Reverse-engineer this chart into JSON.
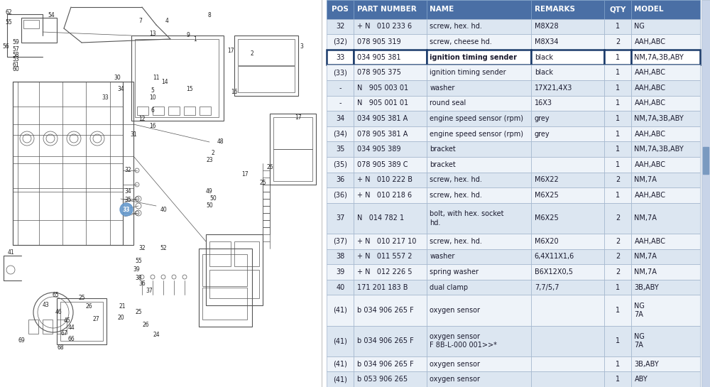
{
  "header_bg": "#4a6fa5",
  "header_fg": "#ffffff",
  "row_bg_light": "#dce6f1",
  "row_bg_white": "#eef3f9",
  "highlight_bg": "#ffffff",
  "highlight_border": "#1a3a6a",
  "text_color": "#1a1a2e",
  "left_bg": "#ffffff",
  "right_bg": "#e0e8f0",
  "table_header": [
    "POS",
    "PART NUMBER",
    "NAME",
    "REMARKS",
    "QTY",
    "MODEL"
  ],
  "col_has": [
    "center",
    "left",
    "left",
    "left",
    "center",
    "left"
  ],
  "col_rel": [
    0.068,
    0.185,
    0.265,
    0.185,
    0.068,
    0.175
  ],
  "rows": [
    [
      "32",
      "+ N   010 233 6",
      "screw, hex. hd.",
      "M8X28",
      "1",
      "NG",
      1,
      1
    ],
    [
      "(32)",
      "078 905 319",
      "screw, cheese hd.",
      "M8X34",
      "2",
      "AAH,ABC",
      1,
      1
    ],
    [
      "33",
      "034 905 381",
      "ignition timing sender",
      "black",
      "1",
      "NM,7A,3B,ABY",
      1,
      1
    ],
    [
      "(33)",
      "078 905 375",
      "ignition timing sender",
      "black",
      "1",
      "AAH,ABC",
      1,
      1
    ],
    [
      "-",
      "N   905 003 01",
      "washer",
      "17X21,4X3",
      "1",
      "AAH,ABC",
      1,
      1
    ],
    [
      "-",
      "N   905 001 01",
      "round seal",
      "16X3",
      "1",
      "AAH,ABC",
      1,
      1
    ],
    [
      "34",
      "034 905 381 A",
      "engine speed sensor (rpm)",
      "grey",
      "1",
      "NM,7A,3B,ABY",
      1,
      1
    ],
    [
      "(34)",
      "078 905 381 A",
      "engine speed sensor (rpm)",
      "grey",
      "1",
      "AAH,ABC",
      1,
      1
    ],
    [
      "35",
      "034 905 389",
      "bracket",
      "",
      "1",
      "NM,7A,3B,ABY",
      1,
      1
    ],
    [
      "(35)",
      "078 905 389 C",
      "bracket",
      "",
      "1",
      "AAH,ABC",
      1,
      1
    ],
    [
      "36",
      "+ N   010 222 B",
      "screw, hex. hd.",
      "M6X22",
      "2",
      "NM,7A",
      1,
      1
    ],
    [
      "(36)",
      "+ N   010 218 6",
      "screw, hex. hd.",
      "M6X25",
      "1",
      "AAH,ABC",
      1,
      1
    ],
    [
      "37",
      "N   014 782 1",
      "bolt, with hex. socket\nhd.",
      "M6X25",
      "2",
      "NM,7A",
      2,
      1
    ],
    [
      "(37)",
      "+ N   010 217 10",
      "screw, hex. hd.",
      "M6X20",
      "2",
      "AAH,ABC",
      1,
      1
    ],
    [
      "38",
      "+ N   011 557 2",
      "washer",
      "6,4X11X1,6",
      "2",
      "NM,7A",
      1,
      1
    ],
    [
      "39",
      "+ N   012 226 5",
      "spring washer",
      "B6X12X0,5",
      "2",
      "NM,7A",
      1,
      1
    ],
    [
      "40",
      "171 201 183 B",
      "dual clamp",
      "7,7/5,7",
      "1",
      "3B,ABY",
      1,
      1
    ],
    [
      "(41)",
      "b 034 906 265 F",
      "oxygen sensor",
      "",
      "1",
      "NG\n7A",
      1,
      2
    ],
    [
      "(41)",
      "b 034 906 265 F",
      "oxygen sensor\nF 8B-L-000 001>>*",
      "",
      "1",
      "NG\n7A",
      2,
      2
    ],
    [
      "(41)",
      "b 034 906 265 F",
      "oxygen sensor",
      "",
      "1",
      "3B,ABY",
      1,
      1
    ],
    [
      "(41)",
      "b 053 906 265",
      "oxygen sensor",
      "",
      "1",
      "ABY",
      1,
      1
    ]
  ]
}
